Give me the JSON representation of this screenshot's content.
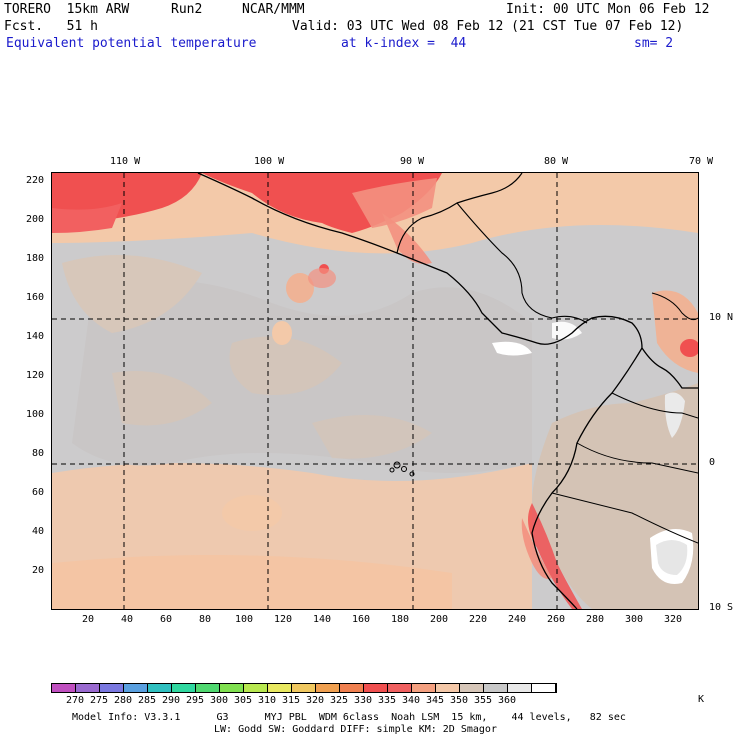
{
  "header": {
    "model": "TORERO  15km ARW",
    "run": "Run2",
    "org": "NCAR/MMM",
    "init": "Init: 00 UTC Mon 06 Feb 12",
    "fcst": "Fcst.   51 h",
    "valid": "Valid: 03 UTC Wed 08 Feb 12 (21 CST Tue 07 Feb 12)",
    "field": "Equivalent potential temperature",
    "level": "at k-index =  44",
    "smooth": "sm= 2"
  },
  "top_lon_labels": [
    "110 W",
    "100 W",
    "90 W",
    "80 W",
    "70 W"
  ],
  "right_lat_labels": [
    "10 N",
    "0",
    "10 S"
  ],
  "y_ticks": [
    "220",
    "200",
    "180",
    "160",
    "140",
    "120",
    "100",
    "80",
    "60",
    "40",
    "20"
  ],
  "x_ticks": [
    "20",
    "40",
    "60",
    "80",
    "100",
    "120",
    "140",
    "160",
    "180",
    "200",
    "220",
    "240",
    "260",
    "280",
    "300",
    "320"
  ],
  "colorbar": {
    "labels": [
      "270",
      "275",
      "280",
      "285",
      "290",
      "295",
      "300",
      "305",
      "310",
      "315",
      "320",
      "325",
      "330",
      "335",
      "340",
      "345",
      "350",
      "355",
      "360"
    ],
    "unit": "K",
    "colors": [
      "#c050c0",
      "#9a6ad0",
      "#7a78e0",
      "#5aa0e0",
      "#30c0c0",
      "#30d8a0",
      "#50d870",
      "#80e050",
      "#b8e850",
      "#e8e860",
      "#f0c860",
      "#f0a050",
      "#f08050",
      "#f05050",
      "#f06060",
      "#f4a080",
      "#f4c8a8",
      "#d6c6b8",
      "#c8c8c8",
      "#e8e8e8",
      "#ffffff"
    ]
  },
  "footer": {
    "line1": "Model Info: V3.3.1      G3      MYJ PBL  WDM 6class  Noah LSM  15 km,    44 levels,   82 sec",
    "line2": "LW: Godd SW: Goddard DIFF: simple KM: 2D Smagor"
  }
}
